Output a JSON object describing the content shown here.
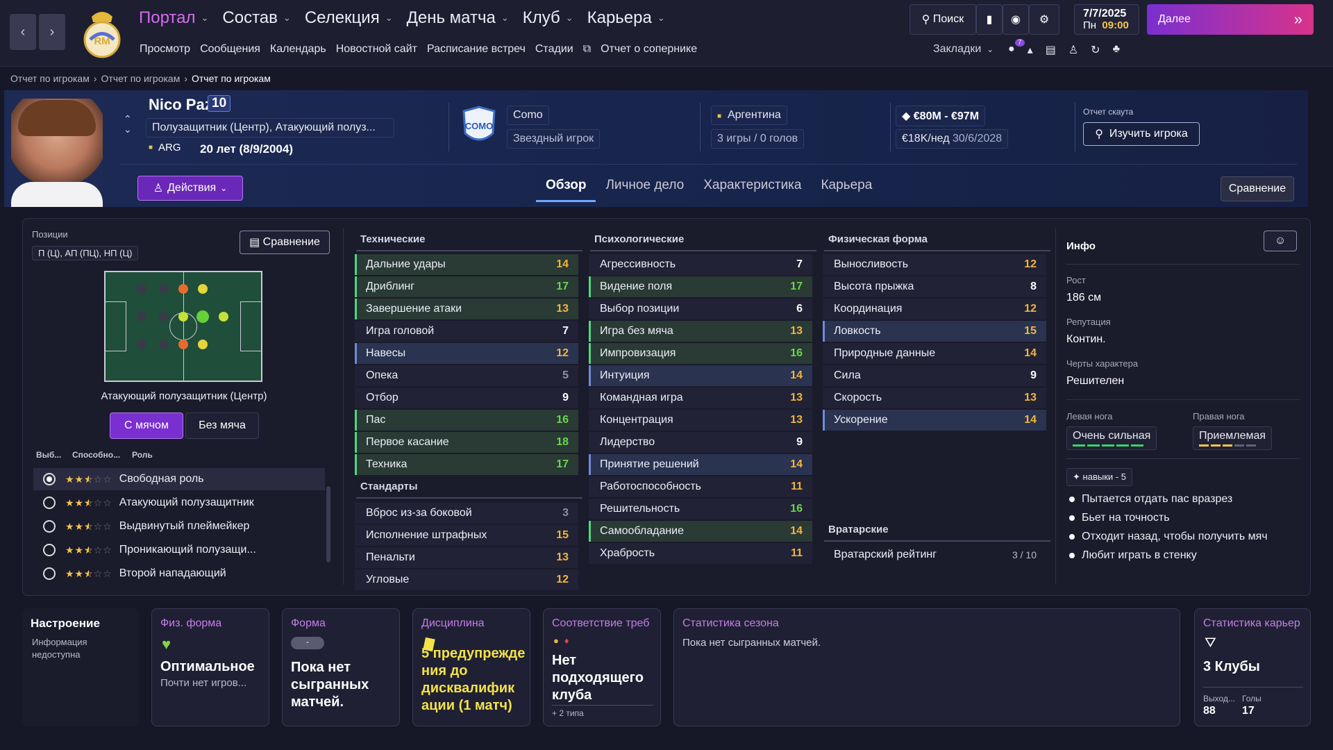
{
  "nav": {
    "back": "‹",
    "forward": "›",
    "menu": [
      {
        "label": "Портал",
        "active": true
      },
      {
        "label": "Состав"
      },
      {
        "label": "Селекция"
      },
      {
        "label": "День матча"
      },
      {
        "label": "Клуб"
      },
      {
        "label": "Карьера"
      }
    ],
    "submenu": [
      "Просмотр",
      "Сообщения",
      "Календарь",
      "Новостной сайт",
      "Расписание встреч",
      "Стадии",
      "Отчет о сопернике"
    ],
    "search": "Поиск",
    "date": "7/7/2025",
    "day": "Пн",
    "time": "09:00",
    "continue": "Далее",
    "bookmarks": "Закладки",
    "badge": "7"
  },
  "breadcrumb": [
    "Отчет по игрокам",
    "Отчет по игрокам",
    "Отчет по игрокам"
  ],
  "player": {
    "name": "Nico Paz",
    "number": "10",
    "position": "Полузащитник (Центр), Атакующий полуз...",
    "nation_code": "ARG",
    "age": "20 лет (8/9/2004)",
    "club": "Como",
    "club_badge": "COMO",
    "status": "Звездный игрок",
    "country": "Аргентина",
    "international": "3 игры / 0 голов",
    "value": "€80M - €97M",
    "wage": "€18K/нед",
    "contract": "30/6/2028",
    "scout_label": "Отчет скаута",
    "scout_btn": "Изучить игрока",
    "actions": "Действия"
  },
  "tabs": [
    "Обзор",
    "Личное дело",
    "Характеристика",
    "Карьера"
  ],
  "compare": "Сравнение",
  "positions": {
    "label": "Позиции",
    "value": "П (Ц), АП (ПЦ), НП (Ц)",
    "compare": "Сравнение",
    "role_title": "Атакующий полузащитник (Центр)",
    "with_ball": "С мячом",
    "without_ball": "Без мяча",
    "col1": "Выб...",
    "col2": "Способно...",
    "col3": "Роль",
    "roles": [
      {
        "name": "Свободная роль",
        "stars": 2.5,
        "sel": true
      },
      {
        "name": "Атакующий полузащитник",
        "stars": 2.5
      },
      {
        "name": "Выдвинутый плеймейкер",
        "stars": 2.5
      },
      {
        "name": "Проникающий полузащи...",
        "stars": 2.5
      },
      {
        "name": "Второй нападающий",
        "stars": 2.5
      }
    ]
  },
  "technical": {
    "title": "Технические",
    "items": [
      [
        "Дальние удары",
        "14"
      ],
      [
        "Дриблинг",
        "17"
      ],
      [
        "Завершение атаки",
        "13"
      ],
      [
        "Игра головой",
        "7"
      ],
      [
        "Навесы",
        "12"
      ],
      [
        "Опека",
        "5"
      ],
      [
        "Отбор",
        "9"
      ],
      [
        "Пас",
        "16"
      ],
      [
        "Первое касание",
        "18"
      ],
      [
        "Техника",
        "17"
      ]
    ]
  },
  "setpieces": {
    "title": "Стандарты",
    "items": [
      [
        "Вброс из-за боковой",
        "3"
      ],
      [
        "Исполнение штрафных",
        "15"
      ],
      [
        "Пенальти",
        "13"
      ],
      [
        "Угловые",
        "12"
      ]
    ]
  },
  "mental": {
    "title": "Психологические",
    "items": [
      [
        "Агрессивность",
        "7"
      ],
      [
        "Видение поля",
        "17"
      ],
      [
        "Выбор позиции",
        "6"
      ],
      [
        "Игра без мяча",
        "13"
      ],
      [
        "Импровизация",
        "16"
      ],
      [
        "Интуиция",
        "14"
      ],
      [
        "Командная игра",
        "13"
      ],
      [
        "Концентрация",
        "13"
      ],
      [
        "Лидерство",
        "9"
      ],
      [
        "Принятие решений",
        "14"
      ],
      [
        "Работоспособность",
        "11"
      ],
      [
        "Решительность",
        "16"
      ],
      [
        "Самообладание",
        "14"
      ],
      [
        "Храбрость",
        "11"
      ]
    ]
  },
  "physical": {
    "title": "Физическая форма",
    "items": [
      [
        "Выносливость",
        "12"
      ],
      [
        "Высота прыжка",
        "8"
      ],
      [
        "Координация",
        "12"
      ],
      [
        "Ловкость",
        "15"
      ],
      [
        "Природные данные",
        "14"
      ],
      [
        "Сила",
        "9"
      ],
      [
        "Скорость",
        "13"
      ],
      [
        "Ускорение",
        "14"
      ]
    ]
  },
  "goalkeeping": {
    "title": "Вратарские",
    "label": "Вратарский рейтинг",
    "value": "3 / 10"
  },
  "info": {
    "title": "Инфо",
    "height_label": "Рост",
    "height": "186 см",
    "rep_label": "Репутация",
    "rep": "Контин.",
    "char_label": "Черты характера",
    "char": "Решителен",
    "left_label": "Левая нога",
    "left": "Очень сильная",
    "right_label": "Правая нога",
    "right": "Приемлемая",
    "skills": "навыки - 5",
    "traits": [
      "Пытается отдать пас вразрез",
      "Бьет на точность",
      "Отходит назад, чтобы получить мяч",
      "Любит играть в стенку"
    ]
  },
  "cards": {
    "mood_t": "Настроение",
    "mood_v": "Информация недоступна",
    "fit_t": "Физ. форма",
    "fit_v": "Оптимальное",
    "fit_s": "Почти нет игров...",
    "form_t": "Форма",
    "form_badge": "-",
    "form_v": "Пока нет сыгранных матчей.",
    "disc_t": "Дисциплина",
    "disc_v": "5 предупрежде ния до дисквалифик ации (1 матч)",
    "req_t": "Соответствие треб",
    "req_v": "Нет подходящего клуба",
    "req_s": "+ 2 типа",
    "season_t": "Статистика сезона",
    "season_v": "Пока нет сыгранных матчей.",
    "career_t": "Статистика карьер",
    "career_v": "3 Клубы",
    "apps_l": "Выход...",
    "goals_l": "Голы",
    "apps": "88",
    "goals": "17"
  }
}
